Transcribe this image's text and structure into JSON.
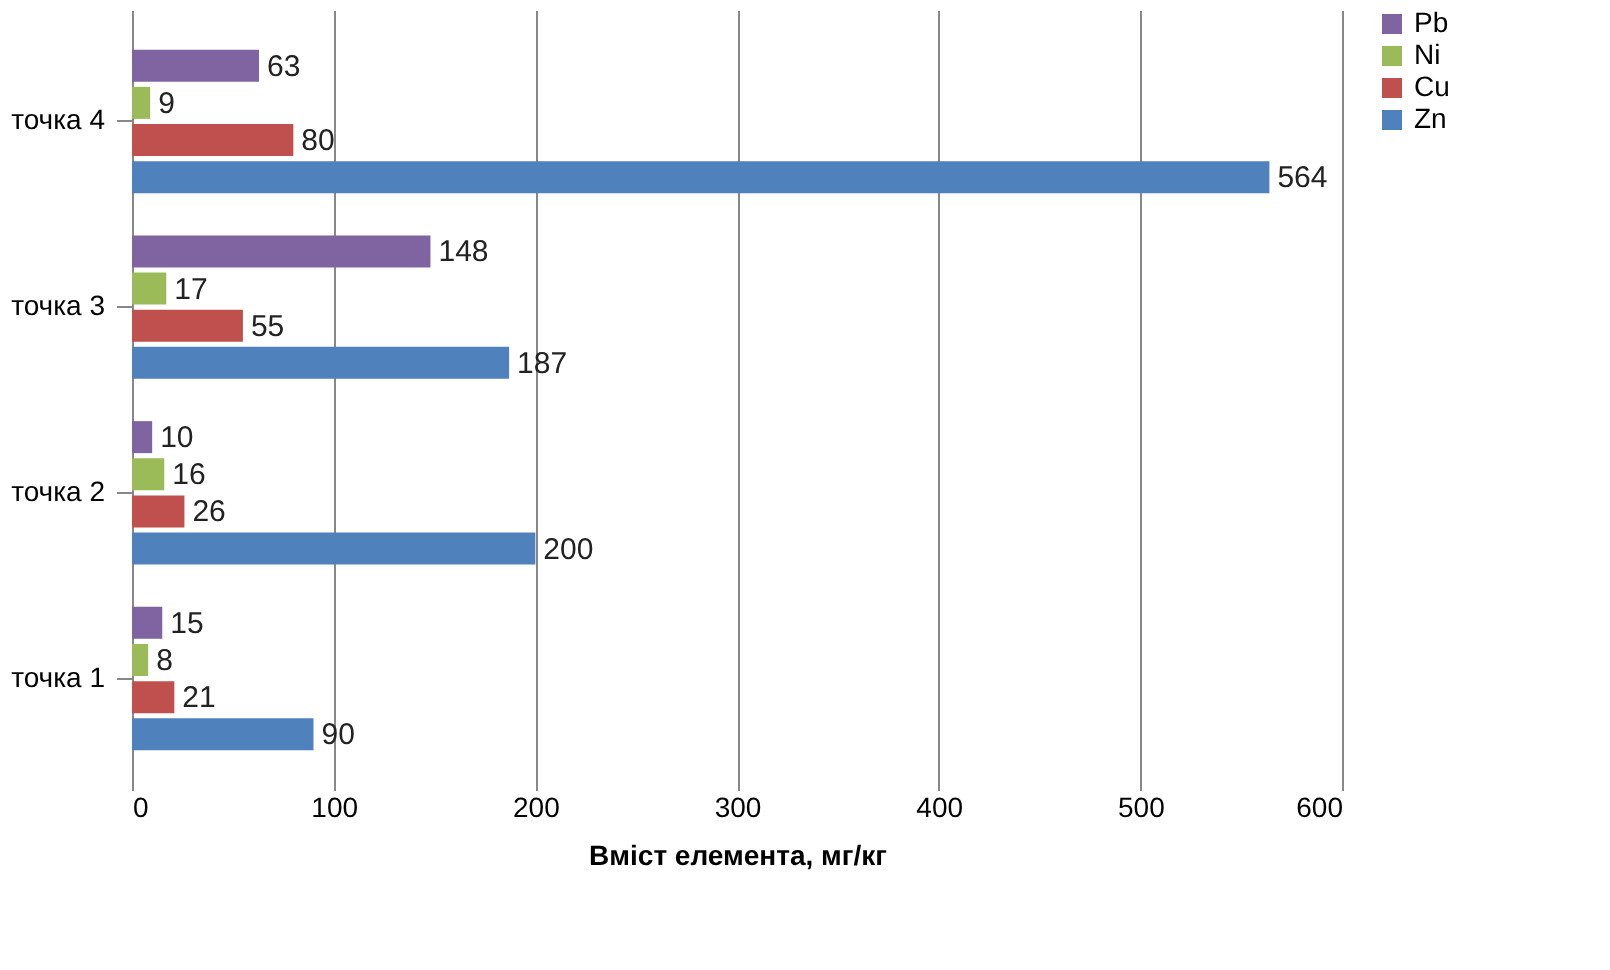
{
  "chart_data": {
    "type": "bar",
    "orientation": "horizontal",
    "xlabel": "Вміст елемента, мг/кг",
    "categories": [
      "точка 4",
      "точка 3",
      "точка 2",
      "точка 1"
    ],
    "series": [
      {
        "name": "Pb",
        "color": "#8064a2",
        "values": [
          63,
          148,
          10,
          15
        ]
      },
      {
        "name": "Ni",
        "color": "#9bbb59",
        "values": [
          9,
          17,
          16,
          8
        ]
      },
      {
        "name": "Cu",
        "color": "#c0504d",
        "values": [
          80,
          55,
          26,
          21
        ]
      },
      {
        "name": "Zn",
        "color": "#4f81bd",
        "values": [
          564,
          187,
          200,
          90
        ]
      }
    ],
    "xlim": [
      0,
      600
    ],
    "xticks": [
      0,
      100,
      200,
      300,
      400,
      500,
      600
    ],
    "grid": "x",
    "legend": "right",
    "data_labels": true
  }
}
